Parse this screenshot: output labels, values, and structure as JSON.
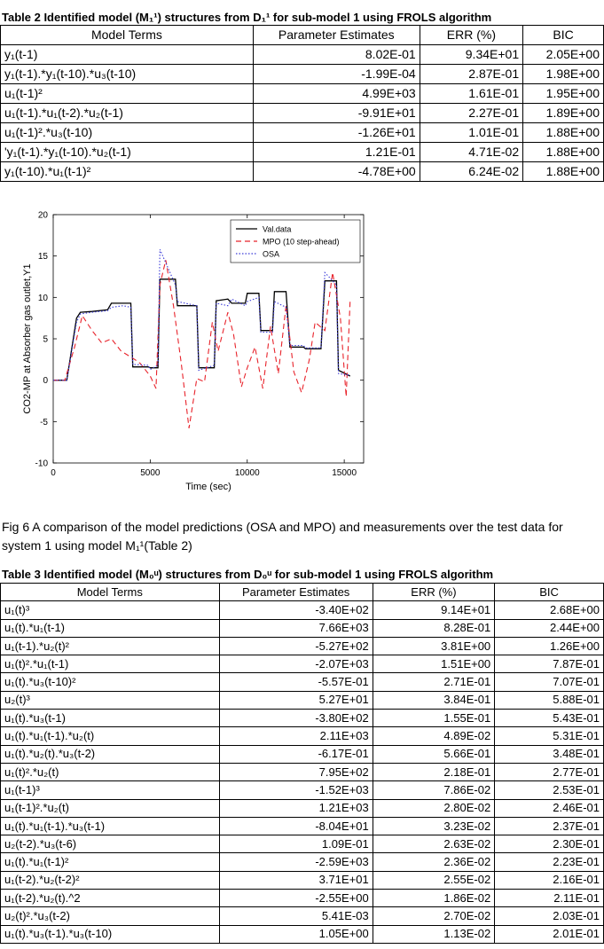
{
  "table2": {
    "caption": "Table 2 Identified model (M₁¹) structures from D₁¹ for sub-model 1 using FROLS algorithm",
    "headers": [
      "Model Terms",
      "Parameter Estimates",
      "ERR (%)",
      "BIC"
    ],
    "rows": [
      [
        "y₁(t-1)",
        "8.02E-01",
        "9.34E+01",
        "2.05E+00"
      ],
      [
        "y₁(t-1).*y₁(t-10).*u₃(t-10)",
        "-1.99E-04",
        "2.87E-01",
        "1.98E+00"
      ],
      [
        "u₁(t-1)²",
        "4.99E+03",
        "1.61E-01",
        "1.95E+00"
      ],
      [
        "u₁(t-1).*u₁(t-2).*u₂(t-1)",
        "-9.91E+01",
        "2.27E-01",
        "1.89E+00"
      ],
      [
        "u₁(t-1)².*u₃(t-10)",
        "-1.26E+01",
        "1.01E-01",
        "1.88E+00"
      ],
      [
        "'y₁(t-1).*y₁(t-10).*u₂(t-1)",
        "1.21E-01",
        "4.71E-02",
        "1.88E+00"
      ],
      [
        "y₁(t-10).*u₁(t-1)²",
        "-4.78E+00",
        "6.24E-02",
        "1.88E+00"
      ]
    ]
  },
  "figure": {
    "caption": "Fig 6 A comparison of the model predictions (OSA and MPO) and measurements over the test data for system 1 using model M₁¹(Table 2)"
  },
  "chart_data": {
    "type": "line",
    "xlabel": "Time (sec)",
    "ylabel": "CO2-MP at Absorber gas outlet,Y1",
    "xlim": [
      0,
      16000
    ],
    "ylim": [
      -10,
      20
    ],
    "xticks": [
      0,
      5000,
      10000,
      15000
    ],
    "yticks": [
      -10,
      -5,
      0,
      5,
      10,
      15,
      20
    ],
    "legend_position": "top-right",
    "series": [
      {
        "name": "Val.data",
        "color": "#000000",
        "style": "solid",
        "x": [
          0,
          700,
          1200,
          1400,
          2000,
          2800,
          3000,
          3600,
          4000,
          4100,
          4900,
          5000,
          5400,
          5500,
          6300,
          6400,
          7400,
          7500,
          8300,
          8400,
          9000,
          9200,
          9900,
          10000,
          10600,
          10700,
          11300,
          11400,
          12000,
          12200,
          12900,
          13000,
          13800,
          14000,
          14600,
          14700,
          15300
        ],
        "y": [
          0,
          0,
          7.5,
          8.2,
          8.3,
          8.5,
          9.3,
          9.3,
          9.3,
          1.6,
          1.6,
          1.5,
          1.5,
          12.2,
          12.2,
          9.0,
          9.0,
          1.5,
          1.5,
          9.6,
          9.8,
          9.3,
          9.3,
          10.5,
          10.5,
          6.0,
          6.0,
          10.7,
          10.7,
          4.0,
          4.0,
          3.8,
          3.8,
          12.0,
          12.0,
          1.2,
          0.5
        ]
      },
      {
        "name": "MPO (10 step-ahead)",
        "color": "#e8232b",
        "style": "dashed",
        "x": [
          0,
          600,
          1100,
          1500,
          2000,
          2500,
          3000,
          3500,
          4000,
          4200,
          4500,
          5000,
          5300,
          5500,
          5800,
          6200,
          6600,
          7000,
          7400,
          7800,
          8200,
          8500,
          9000,
          9300,
          9700,
          10000,
          10400,
          10800,
          11200,
          11600,
          12000,
          12400,
          12800,
          13200,
          13500,
          14000,
          14400,
          14800,
          15100,
          15300
        ],
        "y": [
          0,
          0,
          4.0,
          7.8,
          6.0,
          4.5,
          5.0,
          3.5,
          2.8,
          2.5,
          2.0,
          0.5,
          -1.0,
          11.5,
          14.5,
          9.0,
          2.0,
          -5.8,
          0.2,
          -0.2,
          7.0,
          3.5,
          8.2,
          5.5,
          -0.8,
          1.5,
          4.0,
          -1.0,
          6.5,
          0.8,
          9.0,
          1.0,
          -1.5,
          2.5,
          7.0,
          6.0,
          13.0,
          7.5,
          -2.0,
          9.5
        ]
      },
      {
        "name": "OSA",
        "color": "#3a3ad8",
        "style": "dotted",
        "x": [
          0,
          700,
          1200,
          1400,
          2000,
          2800,
          3000,
          3600,
          4000,
          4100,
          4900,
          5000,
          5400,
          5500,
          6300,
          6400,
          7400,
          7500,
          8300,
          8400,
          9000,
          9200,
          9900,
          10000,
          10600,
          10700,
          11300,
          11400,
          12000,
          12200,
          12900,
          13000,
          13800,
          14000,
          14600,
          14700,
          15300
        ],
        "y": [
          0,
          0,
          7.0,
          8.0,
          8.2,
          8.4,
          8.8,
          9.0,
          8.8,
          1.9,
          1.8,
          1.3,
          1.8,
          15.8,
          11.5,
          9.5,
          9.0,
          1.2,
          1.8,
          9.3,
          9.0,
          9.8,
          9.0,
          9.5,
          10.0,
          5.8,
          5.8,
          9.5,
          8.8,
          4.2,
          4.2,
          3.9,
          3.9,
          13.0,
          11.5,
          0.8,
          0.6
        ]
      }
    ]
  },
  "table3": {
    "caption": "Table 3 Identified model (M₀ᵘ) structures from D₀ᵘ for sub-model 1 using FROLS algorithm",
    "headers": [
      "Model Terms",
      "Parameter Estimates",
      "ERR (%)",
      "BIC"
    ],
    "rows": [
      [
        "u₁(t)³",
        "-3.40E+02",
        "9.14E+01",
        "2.68E+00"
      ],
      [
        "u₁(t).*u₁(t-1)",
        "7.66E+03",
        "8.28E-01",
        "2.44E+00"
      ],
      [
        "u₁(t-1).*u₂(t)²",
        "-5.27E+02",
        "3.81E+00",
        "1.26E+00"
      ],
      [
        "u₁(t)².*u₁(t-1)",
        "-2.07E+03",
        "1.51E+00",
        "7.87E-01"
      ],
      [
        "u₁(t).*u₃(t-10)²",
        "-5.57E-01",
        "2.71E-01",
        "7.07E-01"
      ],
      [
        "u₂(t)³",
        "5.27E+01",
        "3.84E-01",
        "5.88E-01"
      ],
      [
        "u₁(t).*u₃(t-1)",
        "-3.80E+02",
        "1.55E-01",
        "5.43E-01"
      ],
      [
        "u₁(t).*u₁(t-1).*u₂(t)",
        "2.11E+03",
        "4.89E-02",
        "5.31E-01"
      ],
      [
        "u₁(t).*u₂(t).*u₃(t-2)",
        "-6.17E-01",
        "5.66E-01",
        "3.48E-01"
      ],
      [
        "u₁(t)².*u₂(t)",
        "7.95E+02",
        "2.18E-01",
        "2.77E-01"
      ],
      [
        "u₁(t-1)³",
        "-1.52E+03",
        "7.86E-02",
        "2.53E-01"
      ],
      [
        "u₁(t-1)².*u₂(t)",
        "1.21E+03",
        "2.80E-02",
        "2.46E-01"
      ],
      [
        "u₁(t).*u₁(t-1).*u₃(t-1)",
        "-8.04E+01",
        "3.23E-02",
        "2.37E-01"
      ],
      [
        "u₂(t-2).*u₃(t-6)",
        "1.09E-01",
        "2.63E-02",
        "2.30E-01"
      ],
      [
        "u₁(t).*u₁(t-1)²",
        "-2.59E+03",
        "2.36E-02",
        "2.23E-01"
      ],
      [
        "u₁(t-2).*u₂(t-2)²",
        "3.71E+01",
        "2.55E-02",
        "2.16E-01"
      ],
      [
        "u₁(t-2).*u₂(t).^2",
        "-2.55E+00",
        "1.86E-02",
        "2.11E-01"
      ],
      [
        "u₂(t)².*u₃(t-2)",
        "5.41E-03",
        "2.70E-02",
        "2.03E-01"
      ],
      [
        "u₁(t).*u₃(t-1).*u₃(t-10)",
        "1.05E+00",
        "1.13E-02",
        "2.01E-01"
      ]
    ]
  }
}
